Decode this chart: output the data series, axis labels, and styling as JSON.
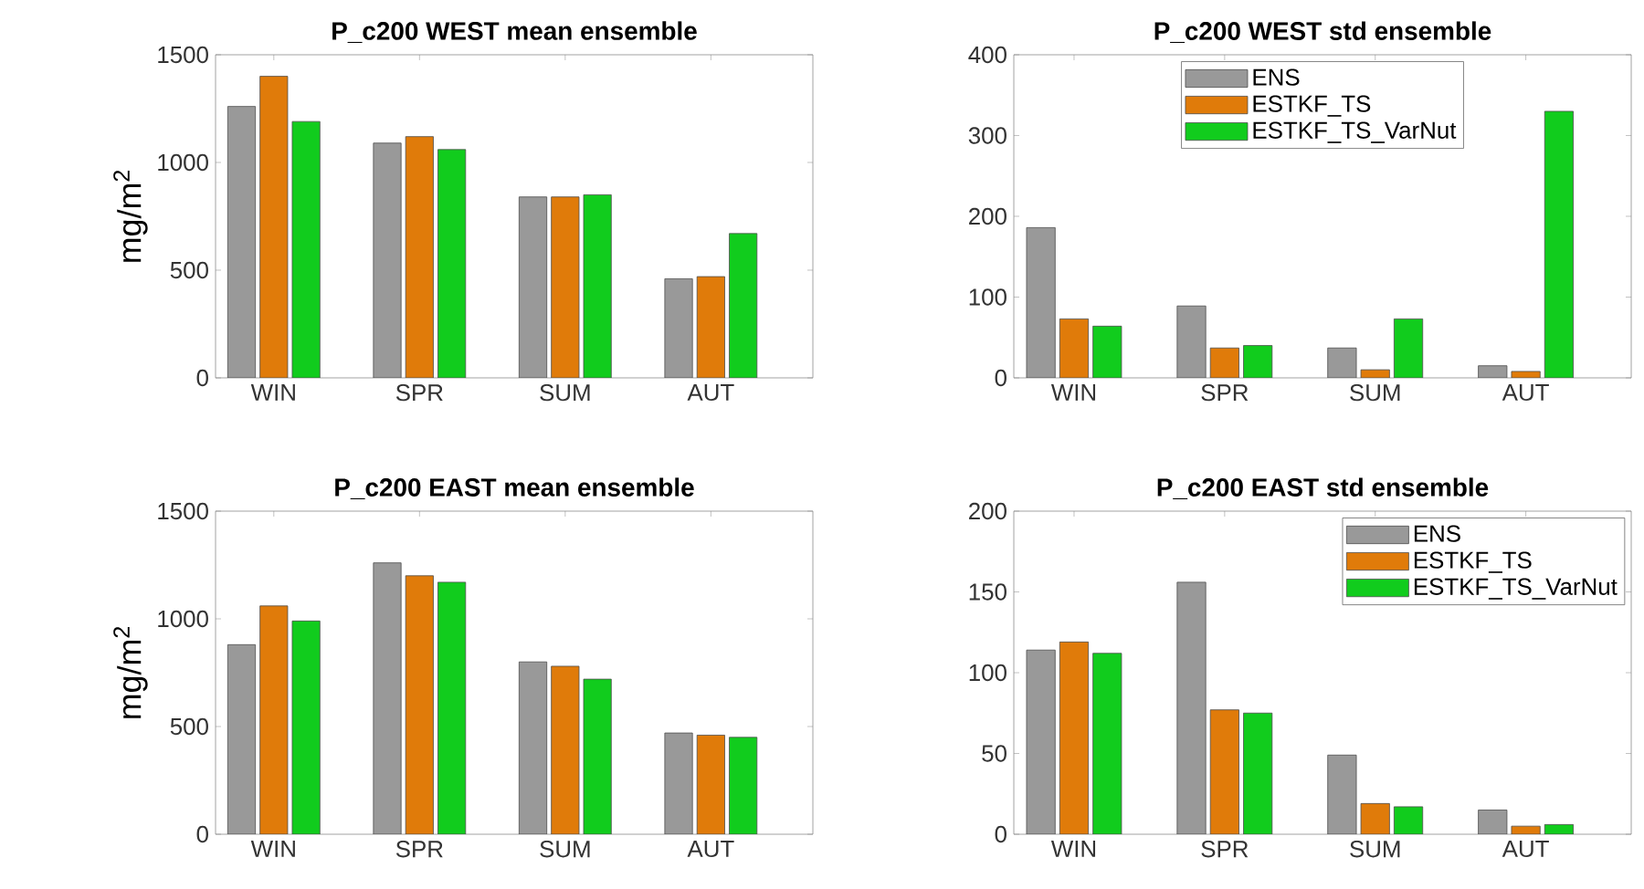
{
  "chart_data": [
    {
      "type": "bar",
      "title": "P_c200 WEST mean ensemble",
      "ylabel": "mg/m$^{2}$",
      "categories": [
        "WIN",
        "SPR",
        "SUM",
        "AUT"
      ],
      "ylim": [
        0,
        1500
      ],
      "yticks": [
        0,
        500,
        1000,
        1500
      ],
      "legend": false,
      "series": [
        {
          "color": "#999999",
          "values": [
            1260,
            1090,
            840,
            460
          ]
        },
        {
          "color": "#e07b0a",
          "values": [
            1400,
            1120,
            840,
            470
          ]
        },
        {
          "color": "#11cc1d",
          "values": [
            1190,
            1060,
            850,
            670
          ]
        }
      ]
    },
    {
      "type": "bar",
      "title": "P_c200 WEST std ensemble",
      "categories": [
        "WIN",
        "SPR",
        "SUM",
        "AUT"
      ],
      "ylim": [
        0,
        400
      ],
      "yticks": [
        0,
        100,
        200,
        300,
        400
      ],
      "legend": "top",
      "series": [
        {
          "name": "ENS",
          "color": "#999999",
          "values": [
            186,
            89,
            37,
            15
          ]
        },
        {
          "name": "ESTKF_TS",
          "color": "#e07b0a",
          "values": [
            73,
            37,
            10,
            8
          ]
        },
        {
          "name": "ESTKF_TS_VarNut",
          "color": "#11cc1d",
          "values": [
            64,
            40,
            73,
            330
          ]
        }
      ]
    },
    {
      "type": "bar",
      "title": "P_c200 EAST mean ensemble",
      "ylabel": "mg/m$^{2}$",
      "categories": [
        "WIN",
        "SPR",
        "SUM",
        "AUT"
      ],
      "ylim": [
        0,
        1500
      ],
      "yticks": [
        0,
        500,
        1000,
        1500
      ],
      "legend": false,
      "series": [
        {
          "color": "#999999",
          "values": [
            880,
            1260,
            800,
            470
          ]
        },
        {
          "color": "#e07b0a",
          "values": [
            1060,
            1200,
            780,
            460
          ]
        },
        {
          "color": "#11cc1d",
          "values": [
            990,
            1170,
            720,
            450
          ]
        }
      ]
    },
    {
      "type": "bar",
      "title": "P_c200 EAST std ensemble",
      "categories": [
        "WIN",
        "SPR",
        "SUM",
        "AUT"
      ],
      "ylim": [
        0,
        200
      ],
      "yticks": [
        0,
        50,
        100,
        150,
        200
      ],
      "legend": "top right",
      "series": [
        {
          "name": "ENS",
          "color": "#999999",
          "values": [
            114,
            156,
            49,
            15
          ]
        },
        {
          "name": "ESTKF_TS",
          "color": "#e07b0a",
          "values": [
            119,
            77,
            19,
            5
          ]
        },
        {
          "name": "ESTKF_TS_VarNut",
          "color": "#11cc1d",
          "values": [
            112,
            75,
            17,
            6
          ]
        }
      ]
    }
  ]
}
